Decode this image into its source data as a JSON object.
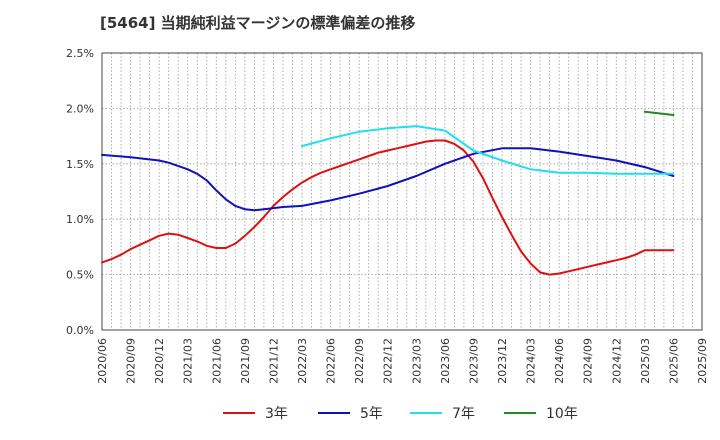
{
  "chart_data": {
    "type": "line",
    "title": "[5464]  当期純利益マージンの標準偏差の推移",
    "xlabel": "",
    "ylabel": "",
    "ylim": [
      0,
      2.5
    ],
    "yticks": [
      "0.0%",
      "0.5%",
      "1.0%",
      "1.5%",
      "2.0%",
      "2.5%"
    ],
    "ytick_values": [
      0,
      0.5,
      1.0,
      1.5,
      2.0,
      2.5
    ],
    "x_start": "2020/06",
    "x_end": "2025/09",
    "xticks": [
      "2020/06",
      "2020/09",
      "2020/12",
      "2021/03",
      "2021/06",
      "2021/09",
      "2021/12",
      "2022/03",
      "2022/06",
      "2022/09",
      "2022/12",
      "2023/03",
      "2023/06",
      "2023/09",
      "2023/12",
      "2024/03",
      "2024/06",
      "2024/09",
      "2024/12",
      "2025/03",
      "2025/06",
      "2025/09"
    ],
    "grid": true,
    "legend_position": "bottom",
    "series": [
      {
        "name": "3年",
        "color": "#dd1111",
        "x": [
          "2020/06",
          "2020/07",
          "2020/08",
          "2020/09",
          "2020/10",
          "2020/11",
          "2020/12",
          "2021/01",
          "2021/02",
          "2021/03",
          "2021/04",
          "2021/05",
          "2021/06",
          "2021/07",
          "2021/08",
          "2021/09",
          "2021/10",
          "2021/11",
          "2021/12",
          "2022/01",
          "2022/02",
          "2022/03",
          "2022/04",
          "2022/05",
          "2022/06",
          "2022/07",
          "2022/08",
          "2022/09",
          "2022/10",
          "2022/11",
          "2022/12",
          "2023/01",
          "2023/02",
          "2023/03",
          "2023/04",
          "2023/05",
          "2023/06",
          "2023/07",
          "2023/08",
          "2023/09",
          "2023/10",
          "2023/11",
          "2023/12",
          "2024/01",
          "2024/02",
          "2024/03",
          "2024/04",
          "2024/05",
          "2024/06",
          "2024/07",
          "2024/08",
          "2024/09",
          "2024/10",
          "2024/11",
          "2024/12",
          "2025/01",
          "2025/02",
          "2025/03",
          "2025/04",
          "2025/05",
          "2025/06"
        ],
        "values": [
          0.61,
          0.64,
          0.68,
          0.73,
          0.77,
          0.81,
          0.85,
          0.87,
          0.86,
          0.83,
          0.8,
          0.76,
          0.74,
          0.74,
          0.78,
          0.85,
          0.93,
          1.02,
          1.12,
          1.2,
          1.27,
          1.33,
          1.38,
          1.42,
          1.45,
          1.48,
          1.51,
          1.54,
          1.57,
          1.6,
          1.62,
          1.64,
          1.66,
          1.68,
          1.7,
          1.71,
          1.71,
          1.68,
          1.62,
          1.52,
          1.37,
          1.19,
          1.02,
          0.86,
          0.71,
          0.6,
          0.52,
          0.5,
          0.51,
          0.53,
          0.55,
          0.57,
          0.59,
          0.61,
          0.63,
          0.65,
          0.68,
          0.72,
          0.72,
          0.72,
          0.72
        ]
      },
      {
        "name": "5年",
        "color": "#1111bb",
        "x": [
          "2020/06",
          "2020/09",
          "2020/12",
          "2021/01",
          "2021/03",
          "2021/04",
          "2021/05",
          "2021/06",
          "2021/07",
          "2021/08",
          "2021/09",
          "2021/10",
          "2021/11",
          "2021/12",
          "2022/01",
          "2022/03",
          "2022/06",
          "2022/09",
          "2022/12",
          "2023/03",
          "2023/06",
          "2023/09",
          "2023/12",
          "2024/03",
          "2024/06",
          "2024/09",
          "2024/12",
          "2025/03",
          "2025/06"
        ],
        "values": [
          1.58,
          1.56,
          1.53,
          1.51,
          1.45,
          1.41,
          1.35,
          1.26,
          1.18,
          1.12,
          1.09,
          1.08,
          1.09,
          1.1,
          1.11,
          1.12,
          1.17,
          1.23,
          1.3,
          1.39,
          1.5,
          1.59,
          1.64,
          1.64,
          1.61,
          1.57,
          1.53,
          1.47,
          1.39
        ]
      },
      {
        "name": "7年",
        "color": "#22ddee",
        "x": [
          "2022/03",
          "2022/06",
          "2022/09",
          "2022/12",
          "2023/03",
          "2023/06",
          "2023/09",
          "2023/12",
          "2024/03",
          "2024/06",
          "2024/09",
          "2024/12",
          "2025/03",
          "2025/06"
        ],
        "values": [
          1.66,
          1.73,
          1.79,
          1.82,
          1.84,
          1.8,
          1.62,
          1.53,
          1.45,
          1.42,
          1.42,
          1.41,
          1.41,
          1.41
        ]
      },
      {
        "name": "10年",
        "color": "#228822",
        "x": [
          "2025/03",
          "2025/06"
        ],
        "values": [
          1.97,
          1.94
        ]
      }
    ]
  }
}
